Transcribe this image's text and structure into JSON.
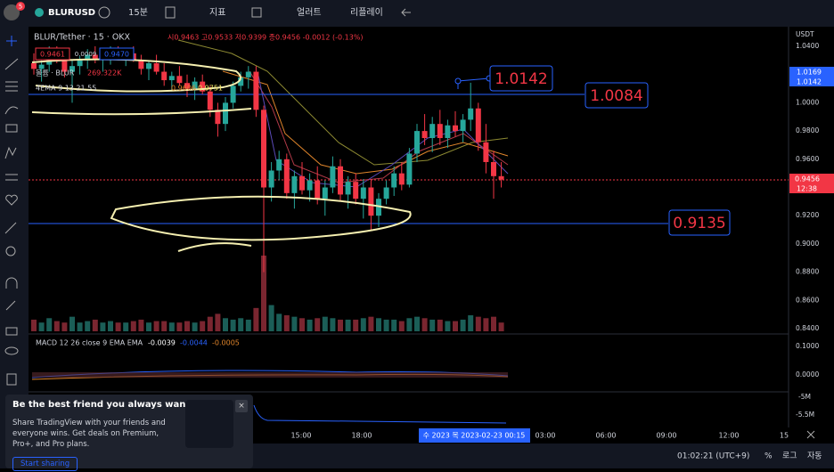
{
  "toolbar": {
    "symbol": "BLURUSD",
    "interval": "15분",
    "indicators": "지표",
    "alert": "얼러트",
    "replay": "리플레이",
    "badge": "5"
  },
  "legend": {
    "title": "BLUR/Tether · 15 · OKX",
    "ohlc": "시0.9463 고0.9533 저0.9399 종0.9456 -0.0012 (-0.13%)",
    "bid": "0.9461",
    "spread": "0.0009",
    "ask": "0.9470",
    "volume_name": "볼륨 · BLUR",
    "volume_value": "269.322K",
    "ema_name": "4EMA 9 13 21 55",
    "ema_values": [
      "0.9606",
      "0.9751"
    ]
  },
  "drawings": {
    "high_label": "1.0142",
    "line_upper": "1.0084",
    "line_lower": "0.9135"
  },
  "price_axis": {
    "currency": "USDT",
    "ticks": [
      "1.0400",
      "1.0200",
      "1.0000",
      "0.9800",
      "0.9600",
      "0.9400",
      "0.9200",
      "0.9000",
      "0.8800",
      "0.8600",
      "0.8400"
    ],
    "badge_1": "1.0169",
    "badge_2": "1.0142",
    "last_price": "0.9456",
    "countdown": "12:38"
  },
  "macd": {
    "legend": "MACD 12 26 close 9 EMA EMA",
    "values": [
      "-0.0039",
      "-0.0044",
      "-0.0005"
    ],
    "ticks": [
      "0.1000",
      "0.0000"
    ]
  },
  "volume_pane": {
    "ticks": [
      "-5M",
      "-5.5M"
    ]
  },
  "time_axis": {
    "ticks": [
      "15:00",
      "18:00",
      "03:00",
      "06:00",
      "09:00",
      "12:00",
      "15"
    ],
    "cursor": "수 2023  목 2023-02-23  00:15"
  },
  "status_bar": {
    "clock": "01:02:21 (UTC+9)",
    "percent": "%",
    "log": "로그",
    "auto": "자동"
  },
  "popup": {
    "title": "Be the best friend you always wanted",
    "text": "Share TradingView with your friends and everyone wins. Get deals on Premium, Pro+, and Pro plans.",
    "button": "Start sharing"
  },
  "candles": [
    [
      1.028,
      1.035,
      1.02,
      1.024,
      40
    ],
    [
      1.024,
      1.03,
      1.015,
      1.027,
      30
    ],
    [
      1.027,
      1.04,
      1.022,
      1.035,
      45
    ],
    [
      1.035,
      1.04,
      1.028,
      1.03,
      35
    ],
    [
      1.03,
      1.036,
      1.018,
      1.022,
      30
    ],
    [
      1.022,
      1.03,
      1.0,
      1.026,
      50
    ],
    [
      1.026,
      1.033,
      1.02,
      1.03,
      30
    ],
    [
      1.03,
      1.038,
      1.024,
      1.034,
      35
    ],
    [
      1.034,
      1.04,
      1.028,
      1.031,
      40
    ],
    [
      1.031,
      1.036,
      1.022,
      1.033,
      30
    ],
    [
      1.033,
      1.04,
      1.027,
      1.036,
      35
    ],
    [
      1.036,
      1.04,
      1.03,
      1.032,
      30
    ],
    [
      1.032,
      1.038,
      1.026,
      1.035,
      30
    ],
    [
      1.035,
      1.04,
      1.029,
      1.03,
      35
    ],
    [
      1.03,
      1.034,
      1.02,
      1.024,
      40
    ],
    [
      1.024,
      1.03,
      1.016,
      1.028,
      30
    ],
    [
      1.028,
      1.034,
      1.02,
      1.022,
      35
    ],
    [
      1.022,
      1.028,
      1.012,
      1.016,
      35
    ],
    [
      1.016,
      1.022,
      1.008,
      1.019,
      30
    ],
    [
      1.019,
      1.026,
      1.012,
      1.014,
      30
    ],
    [
      1.014,
      1.02,
      1.004,
      1.01,
      35
    ],
    [
      1.01,
      1.018,
      1.002,
      1.015,
      30
    ],
    [
      1.015,
      1.02,
      1.006,
      1.008,
      35
    ],
    [
      1.008,
      1.012,
      0.99,
      0.995,
      50
    ],
    [
      0.995,
      1.0,
      0.976,
      0.985,
      60
    ],
    [
      0.985,
      1.004,
      0.98,
      1.0,
      45
    ],
    [
      1.0,
      1.015,
      0.996,
      1.012,
      40
    ],
    [
      1.012,
      1.022,
      1.008,
      1.018,
      45
    ],
    [
      1.018,
      1.026,
      1.01,
      1.022,
      40
    ],
    [
      1.022,
      1.026,
      0.99,
      0.995,
      80
    ],
    [
      0.995,
      0.998,
      0.88,
      0.94,
      260
    ],
    [
      0.94,
      0.958,
      0.93,
      0.952,
      90
    ],
    [
      0.952,
      0.966,
      0.945,
      0.96,
      60
    ],
    [
      0.96,
      0.964,
      0.932,
      0.936,
      55
    ],
    [
      0.936,
      0.952,
      0.925,
      0.948,
      50
    ],
    [
      0.948,
      0.958,
      0.935,
      0.938,
      45
    ],
    [
      0.938,
      0.95,
      0.93,
      0.945,
      40
    ],
    [
      0.945,
      0.955,
      0.928,
      0.932,
      45
    ],
    [
      0.932,
      0.945,
      0.92,
      0.94,
      50
    ],
    [
      0.94,
      0.962,
      0.936,
      0.955,
      45
    ],
    [
      0.955,
      0.96,
      0.93,
      0.935,
      40
    ],
    [
      0.935,
      0.948,
      0.925,
      0.944,
      40
    ],
    [
      0.944,
      0.95,
      0.928,
      0.932,
      40
    ],
    [
      0.932,
      0.946,
      0.918,
      0.94,
      45
    ],
    [
      0.94,
      0.945,
      0.91,
      0.92,
      50
    ],
    [
      0.92,
      0.936,
      0.912,
      0.932,
      45
    ],
    [
      0.932,
      0.945,
      0.928,
      0.94,
      40
    ],
    [
      0.94,
      0.955,
      0.934,
      0.95,
      40
    ],
    [
      0.95,
      0.958,
      0.938,
      0.942,
      35
    ],
    [
      0.942,
      0.968,
      0.94,
      0.964,
      45
    ],
    [
      0.964,
      0.985,
      0.958,
      0.98,
      50
    ],
    [
      0.98,
      0.992,
      0.97,
      0.975,
      45
    ],
    [
      0.975,
      0.99,
      0.965,
      0.985,
      40
    ],
    [
      0.985,
      0.995,
      0.97,
      0.975,
      40
    ],
    [
      0.975,
      0.988,
      0.968,
      0.984,
      35
    ],
    [
      0.984,
      0.994,
      0.976,
      0.98,
      35
    ],
    [
      0.98,
      0.992,
      0.972,
      0.988,
      40
    ],
    [
      0.988,
      1.0142,
      0.98,
      0.996,
      55
    ],
    [
      0.996,
      1.0,
      0.966,
      0.972,
      50
    ],
    [
      0.972,
      0.985,
      0.95,
      0.958,
      45
    ],
    [
      0.958,
      0.966,
      0.932,
      0.948,
      50
    ],
    [
      0.948,
      0.958,
      0.94,
      0.9456,
      30
    ]
  ]
}
